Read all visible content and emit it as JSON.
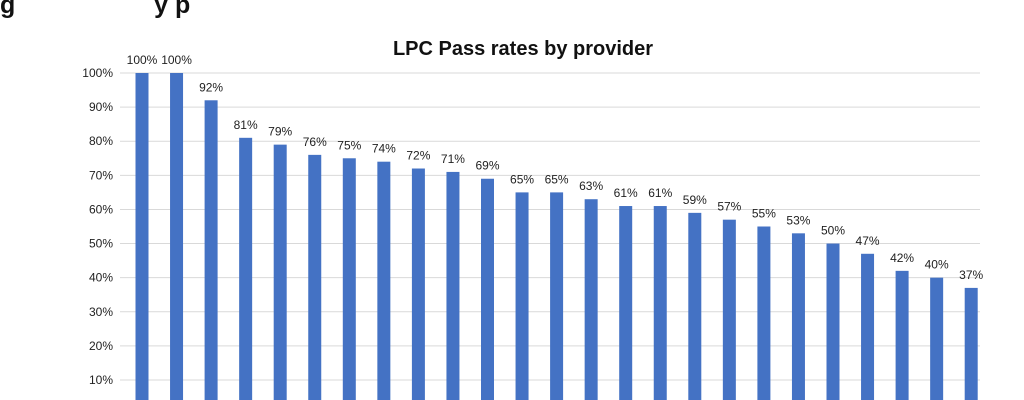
{
  "heading_fragment": "g                    y p",
  "chart_data": {
    "type": "bar",
    "title": "LPC Pass rates by provider",
    "xlabel": "",
    "ylabel": "",
    "ylim": [
      0,
      100
    ],
    "yticks": [
      10,
      20,
      30,
      40,
      50,
      60,
      70,
      80,
      90,
      100
    ],
    "ytick_labels": [
      "10%",
      "20%",
      "30%",
      "40%",
      "50%",
      "60%",
      "70%",
      "80%",
      "90%",
      "100%"
    ],
    "grid": true,
    "bar_color": "#4472c4",
    "values": [
      100,
      100,
      92,
      81,
      79,
      76,
      75,
      74,
      72,
      71,
      69,
      65,
      65,
      63,
      61,
      61,
      59,
      57,
      55,
      53,
      50,
      47,
      42,
      40,
      37
    ],
    "data_labels": [
      "100%",
      "100%",
      "92%",
      "81%",
      "79%",
      "76%",
      "75%",
      "74%",
      "72%",
      "71%",
      "69%",
      "65%",
      "65%",
      "63%",
      "61%",
      "61%",
      "59%",
      "57%",
      "55%",
      "53%",
      "50%",
      "47%",
      "42%",
      "40%",
      "37%"
    ]
  }
}
